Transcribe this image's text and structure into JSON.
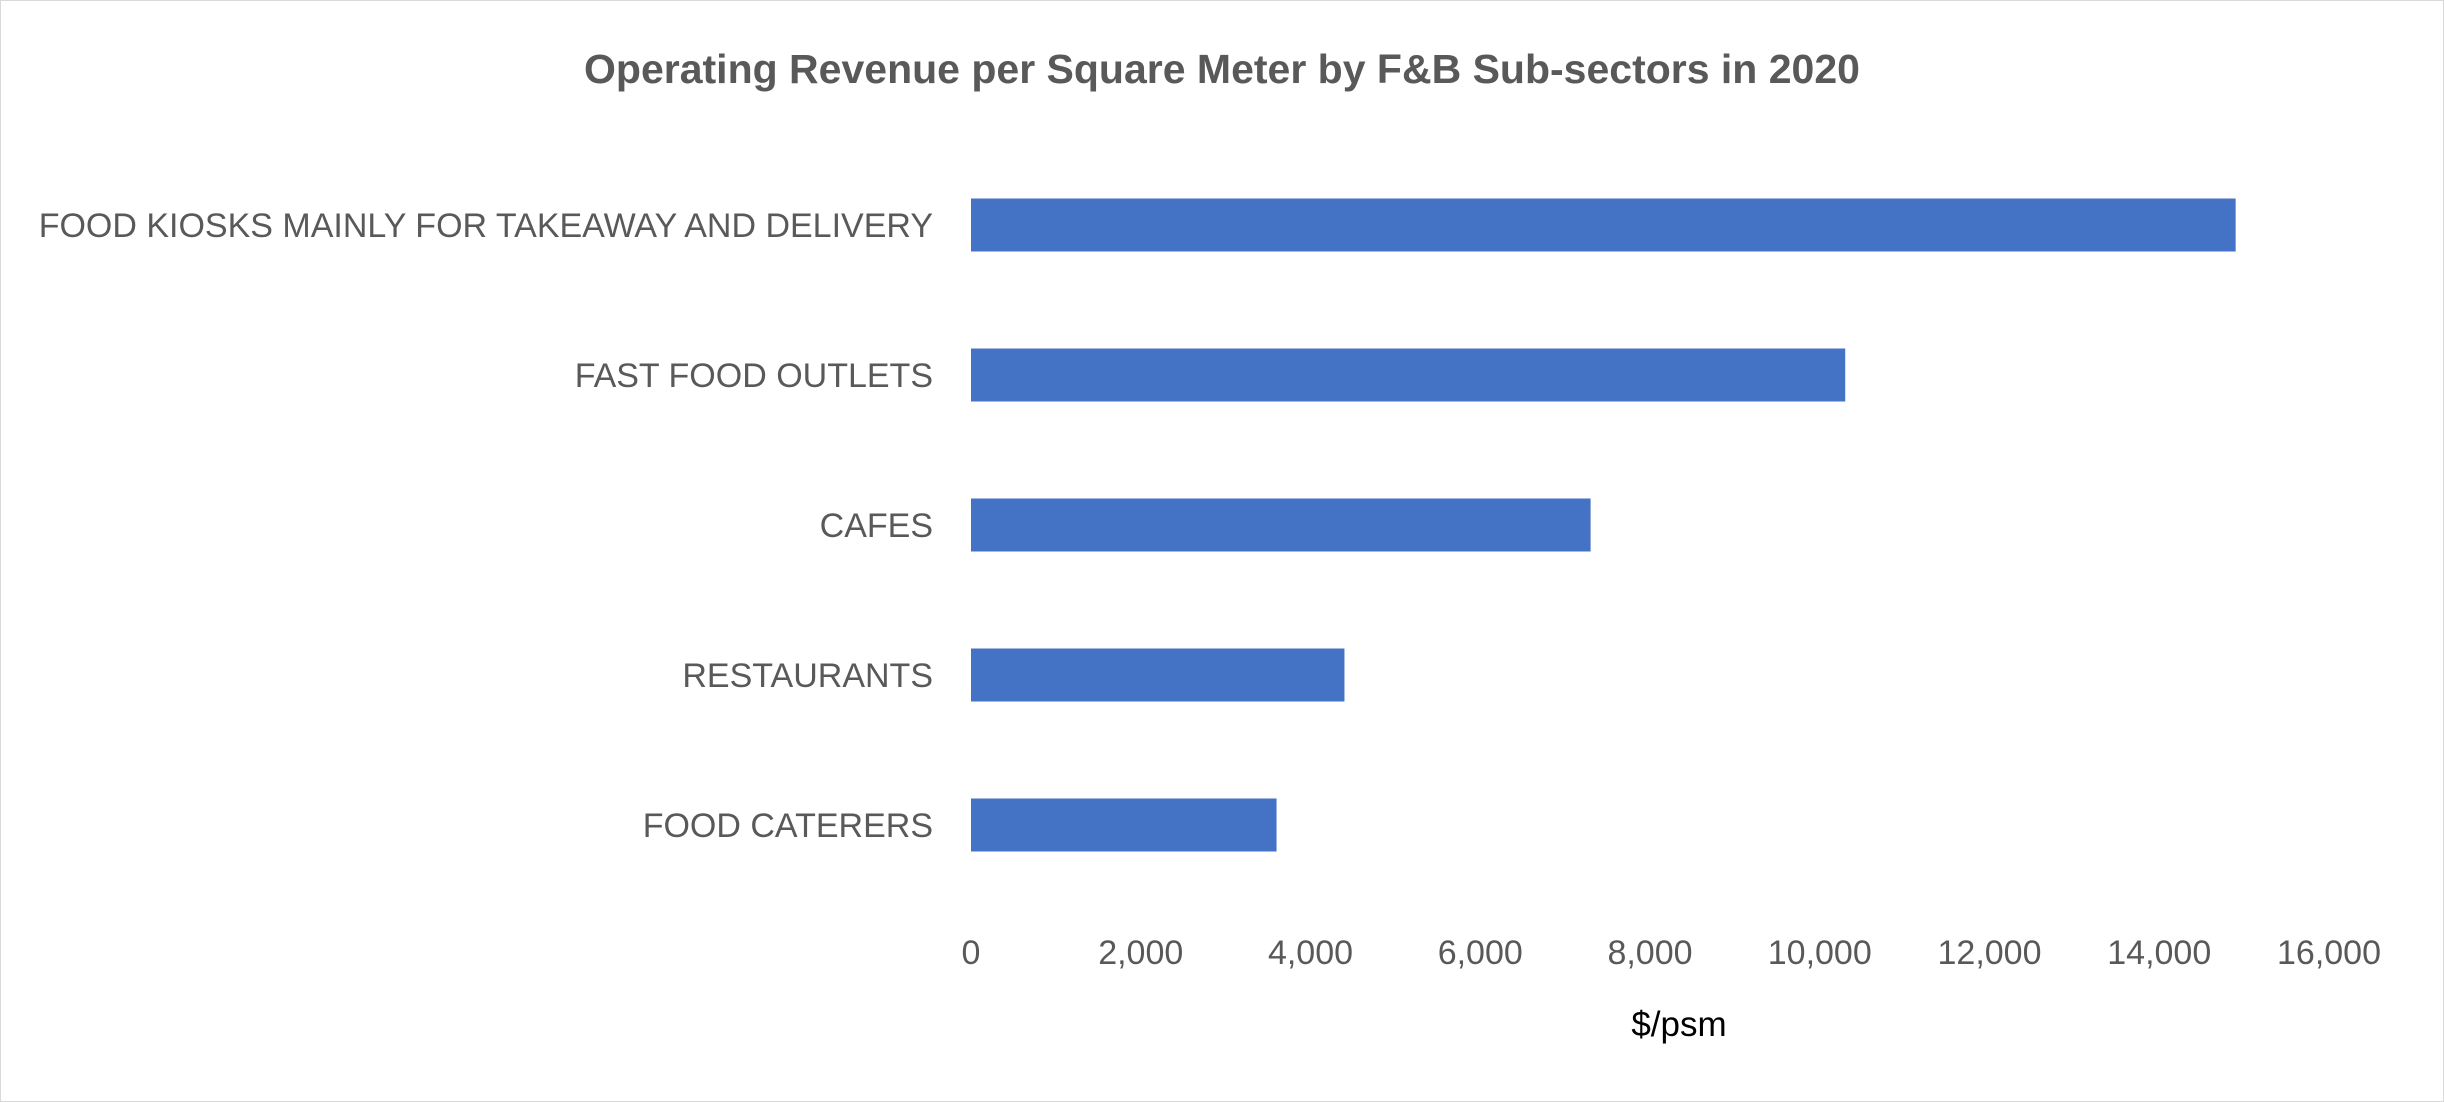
{
  "chart_data": {
    "type": "bar",
    "orientation": "horizontal",
    "title": "Operating Revenue per Square Meter by F&B Sub-sectors in 2020",
    "xlabel": "$/psm",
    "ylabel": "",
    "categories": [
      "FOOD KIOSKS MAINLY FOR TAKEAWAY AND DELIVERY",
      "FAST FOOD OUTLETS",
      "CAFES",
      "RESTAURANTS",
      "FOOD CATERERS"
    ],
    "values": [
      14900,
      10300,
      7300,
      4400,
      3600
    ],
    "xlim": [
      0,
      16000
    ],
    "xticks": [
      0,
      2000,
      4000,
      6000,
      8000,
      10000,
      12000,
      14000,
      16000
    ],
    "xtick_labels": [
      "0",
      "2,000",
      "4,000",
      "6,000",
      "8,000",
      "10,000",
      "12,000",
      "14,000",
      "16,000"
    ],
    "grid": false,
    "legend": "none",
    "colors": {
      "bar": "#4472C4",
      "text": "#595959",
      "axis_title": "#000000",
      "border": "#D9D9D9"
    }
  }
}
